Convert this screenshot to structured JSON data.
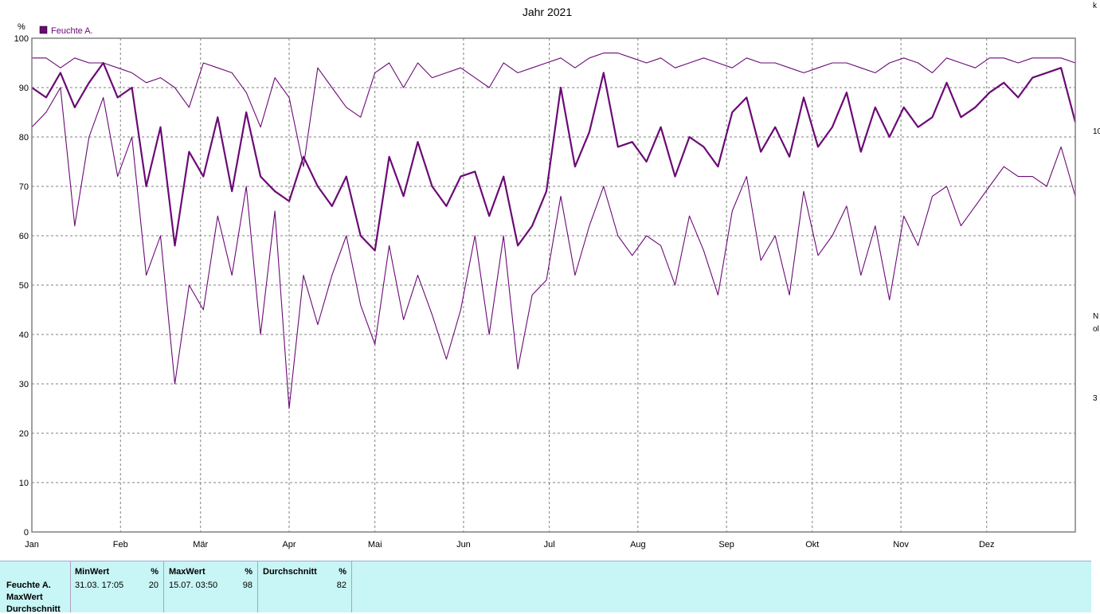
{
  "chart_data": {
    "type": "line",
    "title": "Jahr 2021",
    "ylabel": "%",
    "ylim": [
      0,
      100
    ],
    "yticks": [
      0,
      10,
      20,
      30,
      40,
      50,
      60,
      70,
      80,
      90,
      100
    ],
    "xlim": [
      0,
      365
    ],
    "xticks": [
      {
        "day": 0,
        "label": "Jan"
      },
      {
        "day": 31,
        "label": "Feb"
      },
      {
        "day": 59,
        "label": "Mär"
      },
      {
        "day": 90,
        "label": "Apr"
      },
      {
        "day": 120,
        "label": "Mai"
      },
      {
        "day": 151,
        "label": "Jun"
      },
      {
        "day": 181,
        "label": "Jul"
      },
      {
        "day": 212,
        "label": "Aug"
      },
      {
        "day": 243,
        "label": "Sep"
      },
      {
        "day": 273,
        "label": "Okt"
      },
      {
        "day": 304,
        "label": "Nov"
      },
      {
        "day": 334,
        "label": "Dez"
      }
    ],
    "grid": true,
    "legend": {
      "position": "top-left",
      "label": "Feuchte A."
    },
    "color": "#6b0a75",
    "series": [
      {
        "role": "max",
        "x": [
          0,
          5,
          10,
          15,
          20,
          25,
          30,
          35,
          40,
          45,
          50,
          55,
          60,
          65,
          70,
          75,
          80,
          85,
          90,
          95,
          100,
          105,
          110,
          115,
          120,
          125,
          130,
          135,
          140,
          145,
          150,
          155,
          160,
          165,
          170,
          175,
          180,
          185,
          190,
          195,
          200,
          205,
          210,
          215,
          220,
          225,
          230,
          235,
          240,
          245,
          250,
          255,
          260,
          265,
          270,
          275,
          280,
          285,
          290,
          295,
          300,
          305,
          310,
          315,
          320,
          325,
          330,
          335,
          340,
          345,
          350,
          355,
          360,
          365
        ],
        "y": [
          96,
          96,
          94,
          96,
          95,
          95,
          94,
          93,
          91,
          92,
          90,
          86,
          95,
          94,
          93,
          89,
          82,
          92,
          88,
          74,
          94,
          90,
          86,
          84,
          93,
          95,
          90,
          95,
          92,
          93,
          94,
          92,
          90,
          95,
          93,
          94,
          95,
          96,
          94,
          96,
          97,
          97,
          96,
          95,
          96,
          94,
          95,
          96,
          95,
          94,
          96,
          95,
          95,
          94,
          93,
          94,
          95,
          95,
          94,
          93,
          95,
          96,
          95,
          93,
          96,
          95,
          94,
          96,
          96,
          95,
          96,
          96,
          96,
          95
        ]
      },
      {
        "role": "avg",
        "x": [
          0,
          5,
          10,
          15,
          20,
          25,
          30,
          35,
          40,
          45,
          50,
          55,
          60,
          65,
          70,
          75,
          80,
          85,
          90,
          95,
          100,
          105,
          110,
          115,
          120,
          125,
          130,
          135,
          140,
          145,
          150,
          155,
          160,
          165,
          170,
          175,
          180,
          185,
          190,
          195,
          200,
          205,
          210,
          215,
          220,
          225,
          230,
          235,
          240,
          245,
          250,
          255,
          260,
          265,
          270,
          275,
          280,
          285,
          290,
          295,
          300,
          305,
          310,
          315,
          320,
          325,
          330,
          335,
          340,
          345,
          350,
          355,
          360,
          365
        ],
        "y": [
          90,
          88,
          93,
          86,
          91,
          95,
          88,
          90,
          70,
          82,
          58,
          77,
          72,
          84,
          69,
          85,
          72,
          69,
          67,
          76,
          70,
          66,
          72,
          60,
          57,
          76,
          68,
          79,
          70,
          66,
          72,
          73,
          64,
          72,
          58,
          62,
          69,
          90,
          74,
          81,
          93,
          78,
          79,
          75,
          82,
          72,
          80,
          78,
          74,
          85,
          88,
          77,
          82,
          76,
          88,
          78,
          82,
          89,
          77,
          86,
          80,
          86,
          82,
          84,
          91,
          84,
          86,
          89,
          91,
          88,
          92,
          93,
          94,
          83
        ]
      },
      {
        "role": "min",
        "x": [
          0,
          5,
          10,
          15,
          20,
          25,
          30,
          35,
          40,
          45,
          50,
          55,
          60,
          65,
          70,
          75,
          80,
          85,
          90,
          95,
          100,
          105,
          110,
          115,
          120,
          125,
          130,
          135,
          140,
          145,
          150,
          155,
          160,
          165,
          170,
          175,
          180,
          185,
          190,
          195,
          200,
          205,
          210,
          215,
          220,
          225,
          230,
          235,
          240,
          245,
          250,
          255,
          260,
          265,
          270,
          275,
          280,
          285,
          290,
          295,
          300,
          305,
          310,
          315,
          320,
          325,
          330,
          335,
          340,
          345,
          350,
          355,
          360,
          365
        ],
        "y": [
          82,
          85,
          90,
          62,
          80,
          88,
          72,
          80,
          52,
          60,
          30,
          50,
          45,
          64,
          52,
          70,
          40,
          65,
          25,
          52,
          42,
          52,
          60,
          46,
          38,
          58,
          43,
          52,
          44,
          35,
          45,
          60,
          40,
          60,
          33,
          48,
          51,
          68,
          52,
          62,
          70,
          60,
          56,
          60,
          58,
          50,
          64,
          57,
          48,
          65,
          72,
          55,
          60,
          48,
          69,
          56,
          60,
          66,
          52,
          62,
          47,
          64,
          58,
          68,
          70,
          62,
          66,
          70,
          74,
          72,
          72,
          70,
          78,
          68
        ]
      }
    ]
  },
  "legend_label": "Feuchte A.",
  "stats": {
    "row_labels": [
      "Feuchte A.",
      "MaxWert",
      "Durchschnitt"
    ],
    "columns": [
      {
        "header": "MinWert",
        "unit": "%",
        "date": "31.03.  17:05",
        "value": "20"
      },
      {
        "header": "MaxWert",
        "unit": "%",
        "date": "15.07.  03:50",
        "value": "98"
      },
      {
        "header": "Durchschnitt",
        "unit": "%",
        "date": "",
        "value": "82"
      }
    ]
  },
  "right_strip": [
    "k",
    "10",
    "N",
    "ol",
    "3"
  ]
}
